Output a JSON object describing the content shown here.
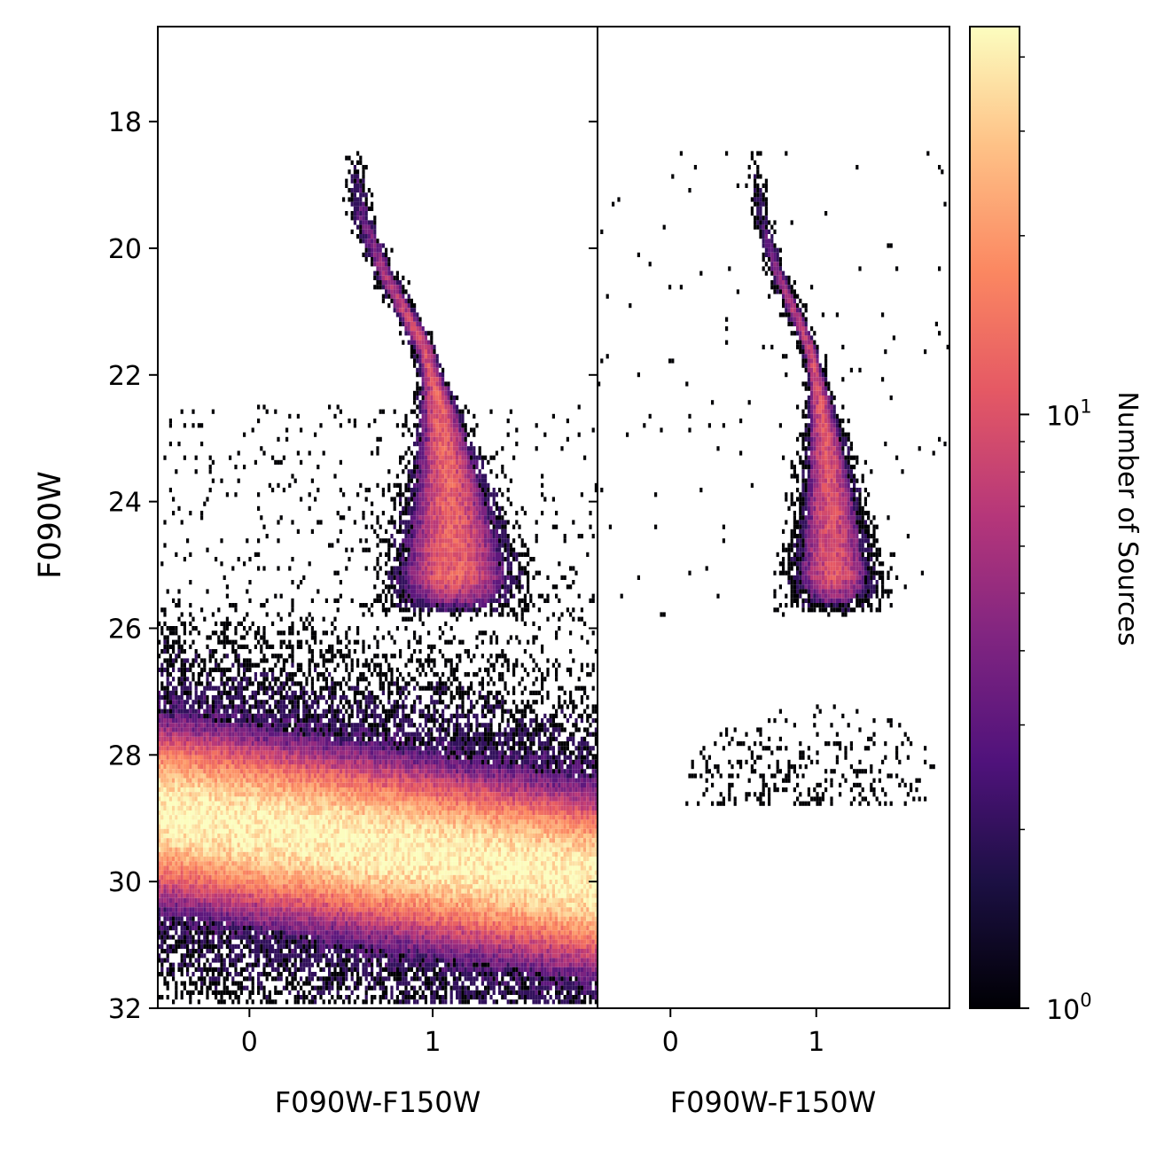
{
  "chart_data": [
    {
      "type": "heatmap",
      "panel": "left",
      "xlabel": "F090W-F150W",
      "ylabel": "F090W",
      "xlim": [
        -0.5,
        1.9
      ],
      "ylim": [
        32,
        16.5
      ],
      "y_inverted": true,
      "xticks": [
        0,
        1
      ],
      "xtick_labels": [
        "0",
        "1"
      ],
      "yticks": [
        18,
        20,
        22,
        24,
        26,
        28,
        30,
        32
      ],
      "ytick_labels": [
        "18",
        "20",
        "22",
        "24",
        "26",
        "28",
        "30",
        "32"
      ],
      "color_scale": "log",
      "colormap": "magma",
      "features": {
        "sequence_track": [
          {
            "mag": 18.6,
            "color": 0.57
          },
          {
            "mag": 19.5,
            "color": 0.62
          },
          {
            "mag": 20.3,
            "color": 0.72
          },
          {
            "mag": 21.0,
            "color": 0.85
          },
          {
            "mag": 21.6,
            "color": 0.96
          },
          {
            "mag": 22.3,
            "color": 1.02
          },
          {
            "mag": 23.0,
            "color": 1.06
          },
          {
            "mag": 23.8,
            "color": 1.09
          },
          {
            "mag": 24.6,
            "color": 1.11
          },
          {
            "mag": 25.4,
            "color": 1.12
          }
        ],
        "sequence_peak_count": 12,
        "dense_band": {
          "color_range": [
            -0.5,
            1.9
          ],
          "mag_at_left": 28.9,
          "mag_at_right": 30.0,
          "width_mag": 0.6,
          "peak_count": 40
        }
      }
    },
    {
      "type": "heatmap",
      "panel": "right",
      "xlabel": "F090W-F150W",
      "xlim": [
        -0.5,
        1.9
      ],
      "ylim": [
        32,
        16.5
      ],
      "xticks": [
        0,
        1
      ],
      "xtick_labels": [
        "0",
        "1"
      ],
      "color_scale": "log",
      "colormap": "magma",
      "features": {
        "sequence_track": [
          {
            "mag": 18.6,
            "color": 0.57
          },
          {
            "mag": 19.5,
            "color": 0.62
          },
          {
            "mag": 20.3,
            "color": 0.72
          },
          {
            "mag": 21.0,
            "color": 0.85
          },
          {
            "mag": 21.6,
            "color": 0.96
          },
          {
            "mag": 22.3,
            "color": 1.02
          },
          {
            "mag": 23.0,
            "color": 1.06
          },
          {
            "mag": 23.8,
            "color": 1.09
          },
          {
            "mag": 24.6,
            "color": 1.11
          },
          {
            "mag": 25.4,
            "color": 1.12
          }
        ],
        "sequence_peak_count": 10,
        "sparse_cloud": {
          "color_range": [
            -0.3,
            1.85
          ],
          "mag_range": [
            27.0,
            28.8
          ],
          "count": 1
        }
      }
    }
  ],
  "colorbar": {
    "label": "Number of Sources",
    "scale": "log",
    "range": [
      1,
      45
    ],
    "major_ticks": [
      1,
      10
    ],
    "major_tick_labels": [
      {
        "base": "10",
        "exp": "0"
      },
      {
        "base": "10",
        "exp": "1"
      }
    ],
    "colormap": "magma"
  }
}
